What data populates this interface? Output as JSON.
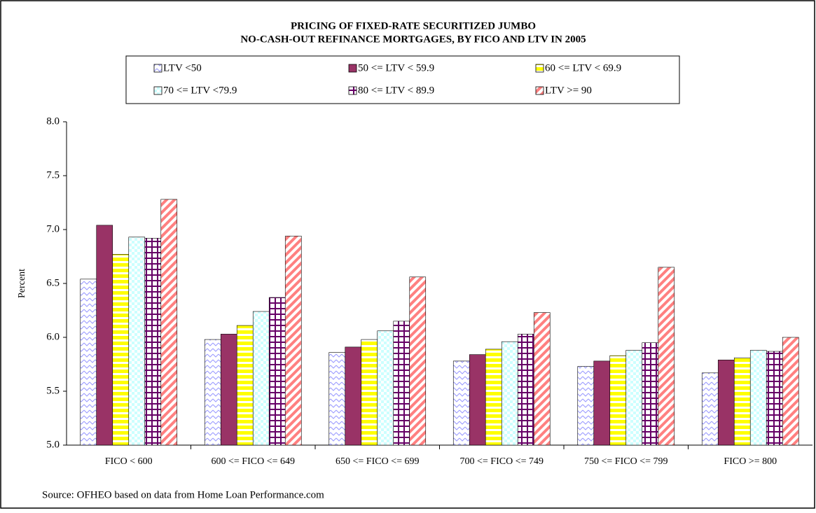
{
  "chart_data": {
    "type": "bar",
    "title": "PRICING OF FIXED-RATE SECURITIZED JUMBO",
    "subtitle": "NO-CASH-OUT REFINANCE MORTGAGES, BY FICO AND LTV IN 2005",
    "y_label": "Percent",
    "source": "Source: OFHEO based on data from Home Loan Performance.com",
    "categories": [
      "FICO < 600",
      "600 <= FICO <= 649",
      "650 <= FICO <= 699",
      "700 <= FICO <= 749",
      "750 <= FICO <= 799",
      "FICO >= 800"
    ],
    "series": [
      {
        "name": "LTV <50",
        "color": "#9999ff",
        "values": [
          6.54,
          5.98,
          5.86,
          5.78,
          5.73,
          5.67
        ]
      },
      {
        "name": "50 <= LTV < 59.9",
        "color": "#993366",
        "values": [
          7.04,
          6.03,
          5.91,
          5.84,
          5.78,
          5.79
        ]
      },
      {
        "name": "60 <= LTV < 69.9",
        "color": "#ffff00",
        "values": [
          6.77,
          6.11,
          5.98,
          5.89,
          5.83,
          5.81
        ]
      },
      {
        "name": "70 <= LTV <79.9",
        "color": "#ccffff",
        "values": [
          6.93,
          6.24,
          6.06,
          5.96,
          5.88,
          5.88
        ]
      },
      {
        "name": "80 <= LTV < 89.9",
        "color": "#660066",
        "values": [
          6.92,
          6.37,
          6.15,
          6.03,
          5.95,
          5.87
        ]
      },
      {
        "name": "LTV >= 90",
        "color": "#ff8080",
        "values": [
          7.28,
          6.94,
          6.56,
          6.23,
          6.65,
          6.0
        ]
      }
    ],
    "ylim": [
      5,
      8
    ],
    "yticks": [
      {
        "value": 5,
        "label": "5.0"
      },
      {
        "value": 5.5,
        "label": "5.5"
      },
      {
        "value": 6,
        "label": "6.0"
      },
      {
        "value": 6.5,
        "label": "6.5"
      },
      {
        "value": 7,
        "label": "7.0"
      },
      {
        "value": 7.5,
        "label": "7.5"
      },
      {
        "value": 8,
        "label": "8.0"
      }
    ]
  }
}
